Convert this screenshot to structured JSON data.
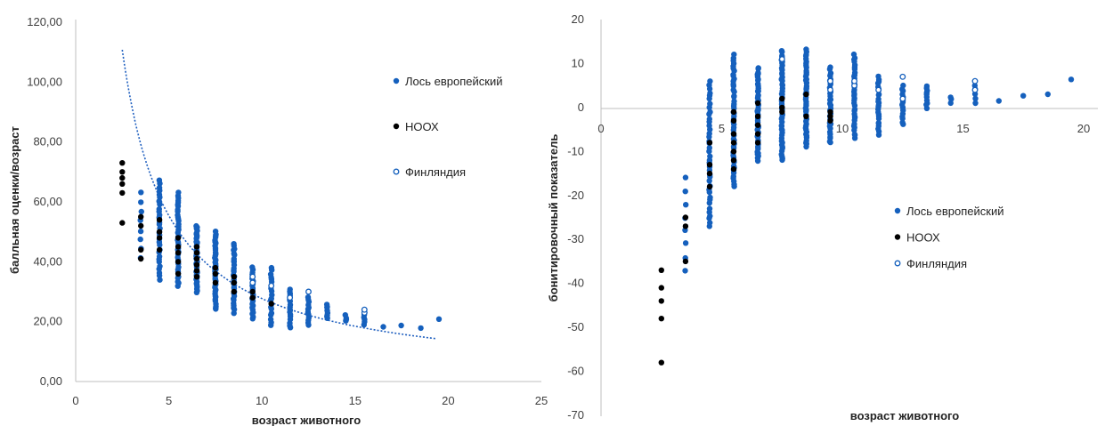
{
  "colors": {
    "blue": "#1560bd",
    "black": "#000000",
    "axis": "#bfbfbf",
    "trend": "#1f5fbf",
    "text": "#404040"
  },
  "chart_data": [
    {
      "type": "scatter",
      "xlabel": "возраст животного",
      "ylabel": "балльная оценки/возраст",
      "xlim": [
        0,
        25
      ],
      "ylim": [
        0,
        120
      ],
      "xticks": [
        {
          "v": 0,
          "label": "0"
        },
        {
          "v": 5,
          "label": "5"
        },
        {
          "v": 10,
          "label": "10"
        },
        {
          "v": 15,
          "label": "15"
        },
        {
          "v": 20,
          "label": "20"
        },
        {
          "v": 25,
          "label": "25"
        }
      ],
      "yticks": [
        {
          "v": 0,
          "label": "0,00"
        },
        {
          "v": 20,
          "label": "20,00"
        },
        {
          "v": 40,
          "label": "40,00"
        },
        {
          "v": 60,
          "label": "60,00"
        },
        {
          "v": 80,
          "label": "80,00"
        },
        {
          "v": 100,
          "label": "100,00"
        },
        {
          "v": 120,
          "label": "120,00"
        }
      ],
      "legend": {
        "position": "right",
        "entries": [
          {
            "label": "Лось европейский",
            "marker": "filled-blue"
          },
          {
            "label": "НООХ",
            "marker": "filled-black"
          },
          {
            "label": "Финляндия",
            "marker": "open-blue"
          }
        ]
      },
      "trendline": {
        "type": "power",
        "coef": 277,
        "exp": -1
      }
    },
    {
      "type": "scatter",
      "xlabel": "возраст животного",
      "ylabel": "бонитировочный показатель",
      "xlim": [
        0,
        20
      ],
      "ylim": [
        -70,
        20
      ],
      "xticks": [
        {
          "v": 0,
          "label": "0"
        },
        {
          "v": 5,
          "label": "5"
        },
        {
          "v": 10,
          "label": "10"
        },
        {
          "v": 15,
          "label": "15"
        },
        {
          "v": 20,
          "label": "20"
        }
      ],
      "yticks": [
        {
          "v": 20,
          "label": "20"
        },
        {
          "v": 10,
          "label": "10"
        },
        {
          "v": 0,
          "label": "0"
        },
        {
          "v": -10,
          "label": "-10"
        },
        {
          "v": -20,
          "label": "-20"
        },
        {
          "v": -30,
          "label": "-30"
        },
        {
          "v": -40,
          "label": "-40"
        },
        {
          "v": -50,
          "label": "-50"
        },
        {
          "v": -60,
          "label": "-60"
        },
        {
          "v": -70,
          "label": "-70"
        }
      ],
      "legend": {
        "position": "bottom-right",
        "entries": [
          {
            "label": "Лось европейский",
            "marker": "filled-blue"
          },
          {
            "label": "НООХ",
            "marker": "filled-black"
          },
          {
            "label": "Финляндия",
            "marker": "open-blue"
          }
        ]
      }
    }
  ]
}
